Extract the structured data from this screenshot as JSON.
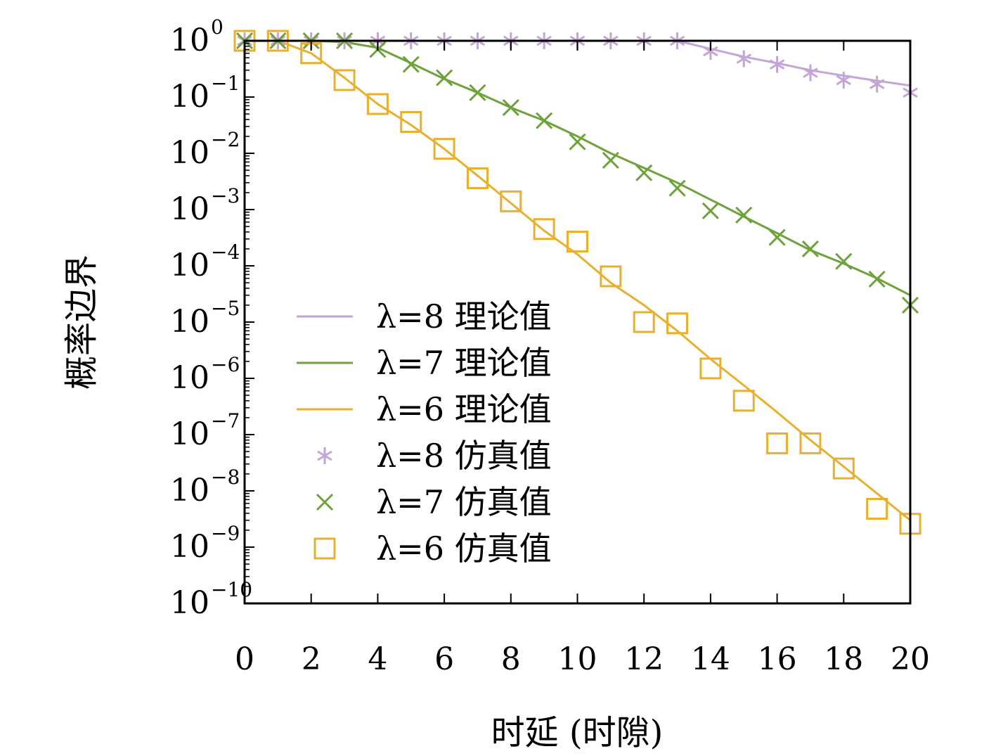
{
  "chart_data": {
    "type": "line",
    "xlabel": "时延 (时隙)",
    "ylabel": "概率边界",
    "xlim": [
      0,
      20
    ],
    "ylim": [
      1e-10,
      1
    ],
    "yscale": "log",
    "xticks": [
      0,
      2,
      4,
      6,
      8,
      10,
      12,
      14,
      16,
      18,
      20
    ],
    "ytick_exponents": [
      0,
      -1,
      -2,
      -3,
      -4,
      -5,
      -6,
      -7,
      -8,
      -9,
      -10
    ],
    "ytick_base": "10",
    "grid": false,
    "legend_position": "center-left",
    "series": [
      {
        "name": "λ=8 理论值",
        "kind": "line",
        "color": "#c3a6d6",
        "x": [
          0,
          1,
          2,
          3,
          4,
          5,
          6,
          7,
          8,
          9,
          10,
          11,
          12,
          13,
          14,
          15,
          16,
          17,
          18,
          19,
          20
        ],
        "y": [
          1,
          1,
          1,
          1,
          1,
          1,
          1,
          1,
          1,
          1,
          1,
          1,
          1,
          1,
          0.72,
          0.52,
          0.4,
          0.3,
          0.24,
          0.195,
          0.16
        ]
      },
      {
        "name": "λ=7 理论值",
        "kind": "line",
        "color": "#6fa23a",
        "x": [
          0,
          1,
          2,
          3,
          4,
          5,
          6,
          7,
          8,
          9,
          10,
          11,
          12,
          13,
          14,
          15,
          16,
          17,
          18,
          19,
          20
        ],
        "y": [
          1,
          1,
          1,
          0.95,
          0.75,
          0.4,
          0.21,
          0.12,
          0.065,
          0.038,
          0.02,
          0.01,
          0.0055,
          0.003,
          0.0015,
          0.00075,
          0.00038,
          0.00019,
          0.00011,
          6e-05,
          3e-05
        ]
      },
      {
        "name": "λ=6 理论值",
        "kind": "line",
        "color": "#e8b02e",
        "x": [
          0,
          1,
          2,
          3,
          4,
          5,
          6,
          7,
          8,
          9,
          10,
          11,
          12,
          13,
          14,
          15,
          16,
          17,
          18,
          19,
          20
        ],
        "y": [
          1,
          1,
          0.6,
          0.22,
          0.075,
          0.032,
          0.012,
          0.004,
          0.0013,
          0.00042,
          0.00016,
          5e-05,
          2e-05,
          7e-06,
          2.2e-06,
          7.5e-07,
          2.5e-07,
          8e-08,
          2.7e-08,
          9e-09,
          3e-09
        ]
      },
      {
        "name": "λ=8 仿真值",
        "kind": "marker",
        "marker": "asterisk",
        "color": "#c3a6d6",
        "x": [
          0,
          1,
          2,
          3,
          4,
          5,
          6,
          7,
          8,
          9,
          10,
          11,
          12,
          13,
          14,
          15,
          16,
          17,
          18,
          19,
          20
        ],
        "y": [
          1,
          1,
          1,
          1,
          1,
          1,
          1,
          1,
          1,
          1,
          1,
          1,
          1,
          1,
          0.65,
          0.48,
          0.38,
          0.27,
          0.2,
          0.17,
          0.12
        ]
      },
      {
        "name": "λ=7 仿真值",
        "kind": "marker",
        "marker": "x",
        "color": "#6fa23a",
        "x": [
          0,
          1,
          2,
          3,
          4,
          5,
          6,
          7,
          8,
          9,
          10,
          11,
          12,
          13,
          14,
          15,
          16,
          17,
          18,
          19,
          20
        ],
        "y": [
          1,
          1,
          1,
          1,
          0.7,
          0.38,
          0.22,
          0.12,
          0.065,
          0.038,
          0.016,
          0.0075,
          0.0045,
          0.0024,
          0.00095,
          0.0008,
          0.00032,
          0.0002,
          0.00012,
          5.8e-05,
          2e-05
        ]
      },
      {
        "name": "λ=6 仿真值",
        "kind": "marker",
        "marker": "square",
        "color": "#e8b02e",
        "x": [
          0,
          1,
          2,
          3,
          4,
          5,
          6,
          7,
          8,
          9,
          10,
          11,
          12,
          13,
          14,
          15,
          16,
          17,
          18,
          19,
          20
        ],
        "y": [
          1,
          1,
          0.6,
          0.2,
          0.075,
          0.036,
          0.012,
          0.0036,
          0.0014,
          0.00045,
          0.00027,
          6.5e-05,
          1e-05,
          9.5e-06,
          1.5e-06,
          4e-07,
          7e-08,
          7e-08,
          2.5e-08,
          4.8e-09,
          2.6e-09
        ]
      }
    ]
  }
}
